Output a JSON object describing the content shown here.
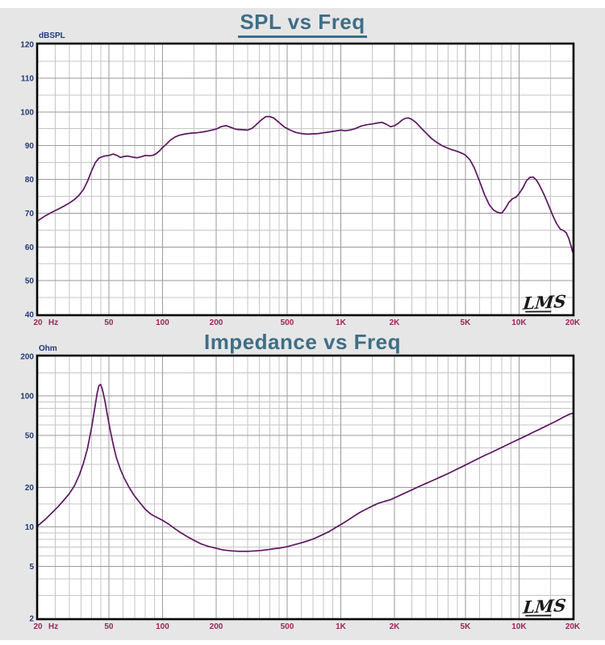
{
  "page": {
    "background": "#e6e6e6",
    "plot_background": "#ffffff",
    "colors": {
      "title": "#3e6e87",
      "curve": "#5b1560",
      "grid_major": "#9a9a9a",
      "grid_minor": "#c6c6c6",
      "border": "#000000",
      "y_label": "#1e3a78",
      "x_label": "#9c2457",
      "watermark": "#1a1a1a"
    }
  },
  "chart_data": "see charts array",
  "charts": [
    {
      "type": "line",
      "title": "SPL vs Freq",
      "y_unit": "dBSPL",
      "x_suffix_first_tick": "Hz",
      "watermark": "LMS",
      "x_scale": "log",
      "y_scale": "linear",
      "x_range": [
        20,
        20000
      ],
      "y_range": [
        40,
        120
      ],
      "y_ticks": [
        {
          "v": 120,
          "label": "120"
        },
        {
          "v": 110,
          "label": "110"
        },
        {
          "v": 100,
          "label": "100"
        },
        {
          "v": 90,
          "label": "90"
        },
        {
          "v": 80,
          "label": "80"
        },
        {
          "v": 70,
          "label": "70"
        },
        {
          "v": 60,
          "label": "60"
        },
        {
          "v": 50,
          "label": "50"
        },
        {
          "v": 40,
          "label": "40"
        }
      ],
      "y_minor": [
        115,
        105,
        95,
        85,
        75,
        65,
        55,
        45
      ],
      "x_ticks": [
        {
          "v": 20,
          "label": "20",
          "suffix": "Hz"
        },
        {
          "v": 50,
          "label": "50"
        },
        {
          "v": 100,
          "label": "100"
        },
        {
          "v": 200,
          "label": "200"
        },
        {
          "v": 500,
          "label": "500"
        },
        {
          "v": 1000,
          "label": "1K"
        },
        {
          "v": 2000,
          "label": "2K"
        },
        {
          "v": 5000,
          "label": "5K"
        },
        {
          "v": 10000,
          "label": "10K"
        },
        {
          "v": 20000,
          "label": "20K"
        }
      ],
      "x_minor": [
        25,
        30,
        35,
        40,
        45,
        60,
        70,
        80,
        90,
        150,
        250,
        300,
        350,
        400,
        450,
        600,
        700,
        800,
        900,
        1500,
        2500,
        3000,
        3500,
        4000,
        4500,
        6000,
        7000,
        8000,
        9000,
        15000
      ],
      "series": [
        [
          20,
          67.8
        ],
        [
          22,
          69.2
        ],
        [
          24,
          70.3
        ],
        [
          26,
          71.2
        ],
        [
          28,
          72.1
        ],
        [
          30,
          73
        ],
        [
          32,
          74
        ],
        [
          34,
          75.3
        ],
        [
          36,
          77
        ],
        [
          38,
          79.5
        ],
        [
          40,
          82.5
        ],
        [
          42,
          85
        ],
        [
          44,
          86.3
        ],
        [
          47,
          86.9
        ],
        [
          50,
          87.1
        ],
        [
          53,
          87.5
        ],
        [
          56,
          87
        ],
        [
          58,
          86.5
        ],
        [
          61,
          86.8
        ],
        [
          64,
          86.9
        ],
        [
          68,
          86.6
        ],
        [
          72,
          86.4
        ],
        [
          76,
          86.7
        ],
        [
          80,
          87.1
        ],
        [
          84,
          87
        ],
        [
          88,
          87.1
        ],
        [
          92,
          87.6
        ],
        [
          96,
          88.4
        ],
        [
          100,
          89.4
        ],
        [
          105,
          90.4
        ],
        [
          110,
          91.5
        ],
        [
          118,
          92.6
        ],
        [
          125,
          93.1
        ],
        [
          135,
          93.5
        ],
        [
          145,
          93.7
        ],
        [
          156,
          93.8
        ],
        [
          170,
          94.1
        ],
        [
          182,
          94.4
        ],
        [
          200,
          94.9
        ],
        [
          215,
          95.7
        ],
        [
          228,
          95.9
        ],
        [
          245,
          95.3
        ],
        [
          260,
          94.8
        ],
        [
          280,
          94.7
        ],
        [
          300,
          94.6
        ],
        [
          320,
          95.2
        ],
        [
          340,
          96.5
        ],
        [
          360,
          97.7
        ],
        [
          380,
          98.6
        ],
        [
          400,
          98.6
        ],
        [
          420,
          98.2
        ],
        [
          450,
          96.9
        ],
        [
          480,
          95.6
        ],
        [
          520,
          94.6
        ],
        [
          560,
          93.9
        ],
        [
          600,
          93.6
        ],
        [
          650,
          93.4
        ],
        [
          700,
          93.5
        ],
        [
          750,
          93.6
        ],
        [
          800,
          93.8
        ],
        [
          850,
          94
        ],
        [
          900,
          94.2
        ],
        [
          950,
          94.4
        ],
        [
          1000,
          94.6
        ],
        [
          1060,
          94.4
        ],
        [
          1120,
          94.6
        ],
        [
          1200,
          95
        ],
        [
          1300,
          95.8
        ],
        [
          1400,
          96.2
        ],
        [
          1500,
          96.4
        ],
        [
          1600,
          96.7
        ],
        [
          1700,
          96.9
        ],
        [
          1800,
          96.3
        ],
        [
          1900,
          95.6
        ],
        [
          2000,
          95.9
        ],
        [
          2100,
          96.6
        ],
        [
          2200,
          97.5
        ],
        [
          2300,
          98.1
        ],
        [
          2400,
          98.2
        ],
        [
          2500,
          97.8
        ],
        [
          2650,
          96.8
        ],
        [
          2800,
          95.4
        ],
        [
          3000,
          93.8
        ],
        [
          3200,
          92.3
        ],
        [
          3400,
          91.2
        ],
        [
          3700,
          90
        ],
        [
          4000,
          89.2
        ],
        [
          4200,
          88.8
        ],
        [
          4500,
          88.3
        ],
        [
          4800,
          87.7
        ],
        [
          5000,
          87.2
        ],
        [
          5300,
          85.8
        ],
        [
          5600,
          83.5
        ],
        [
          6000,
          79.5
        ],
        [
          6400,
          75.5
        ],
        [
          6800,
          72.5
        ],
        [
          7200,
          70.9
        ],
        [
          7600,
          70.2
        ],
        [
          8000,
          70
        ],
        [
          8400,
          71.5
        ],
        [
          8800,
          73.3
        ],
        [
          9200,
          74.3
        ],
        [
          9600,
          74.7
        ],
        [
          10000,
          75.8
        ],
        [
          10500,
          77.5
        ],
        [
          11000,
          79.6
        ],
        [
          11500,
          80.6
        ],
        [
          12000,
          80.7
        ],
        [
          12500,
          79.8
        ],
        [
          13000,
          78.3
        ],
        [
          13800,
          75.5
        ],
        [
          14600,
          72.5
        ],
        [
          15400,
          69.5
        ],
        [
          16200,
          67
        ],
        [
          17000,
          65.3
        ],
        [
          17800,
          64.8
        ],
        [
          18400,
          64.2
        ],
        [
          19000,
          62.5
        ],
        [
          19500,
          60.5
        ],
        [
          20000,
          58.4
        ]
      ]
    },
    {
      "type": "line",
      "title": "Impedance vs Freq",
      "y_unit": "Ohm",
      "x_suffix_first_tick": "Hz",
      "watermark": "LMS",
      "x_scale": "log",
      "y_scale": "log",
      "x_range": [
        20,
        20000
      ],
      "y_range": [
        2,
        200
      ],
      "y_ticks": [
        {
          "v": 200,
          "label": "200"
        },
        {
          "v": 100,
          "label": "100"
        },
        {
          "v": 50,
          "label": "50"
        },
        {
          "v": 20,
          "label": "20"
        },
        {
          "v": 10,
          "label": "10"
        },
        {
          "v": 5,
          "label": "5"
        },
        {
          "v": 2,
          "label": "2"
        }
      ],
      "y_minor": [
        150,
        90,
        80,
        70,
        60,
        40,
        30,
        15,
        9,
        8,
        7,
        6,
        4,
        3
      ],
      "x_ticks": [
        {
          "v": 20,
          "label": "20",
          "suffix": "Hz"
        },
        {
          "v": 50,
          "label": "50"
        },
        {
          "v": 100,
          "label": "100"
        },
        {
          "v": 200,
          "label": "200"
        },
        {
          "v": 500,
          "label": "500"
        },
        {
          "v": 1000,
          "label": "1K"
        },
        {
          "v": 2000,
          "label": "2K"
        },
        {
          "v": 5000,
          "label": "5K"
        },
        {
          "v": 10000,
          "label": "10K"
        },
        {
          "v": 20000,
          "label": "20K"
        }
      ],
      "x_minor": [
        25,
        30,
        35,
        40,
        45,
        60,
        70,
        80,
        90,
        150,
        250,
        300,
        350,
        400,
        450,
        600,
        700,
        800,
        900,
        1500,
        2500,
        3000,
        3500,
        4000,
        4500,
        6000,
        7000,
        8000,
        9000,
        15000
      ],
      "series": [
        [
          20,
          10.2
        ],
        [
          22,
          11.4
        ],
        [
          24,
          12.8
        ],
        [
          26,
          14.3
        ],
        [
          28,
          16
        ],
        [
          30,
          17.9
        ],
        [
          32,
          20.5
        ],
        [
          34,
          24.5
        ],
        [
          36,
          30.5
        ],
        [
          38,
          40
        ],
        [
          40,
          57
        ],
        [
          41.5,
          78
        ],
        [
          43,
          105
        ],
        [
          44,
          120
        ],
        [
          45,
          122
        ],
        [
          46,
          112
        ],
        [
          47.5,
          92
        ],
        [
          49,
          72
        ],
        [
          51,
          54
        ],
        [
          53,
          42
        ],
        [
          55,
          34
        ],
        [
          58,
          27.5
        ],
        [
          61,
          23.5
        ],
        [
          65,
          20
        ],
        [
          69,
          17.5
        ],
        [
          74,
          15.5
        ],
        [
          80,
          13.6
        ],
        [
          86,
          12.5
        ],
        [
          93,
          11.8
        ],
        [
          100,
          11.2
        ],
        [
          108,
          10.5
        ],
        [
          117,
          9.7
        ],
        [
          127,
          9
        ],
        [
          138,
          8.4
        ],
        [
          150,
          7.9
        ],
        [
          165,
          7.4
        ],
        [
          180,
          7.1
        ],
        [
          200,
          6.85
        ],
        [
          220,
          6.65
        ],
        [
          245,
          6.55
        ],
        [
          270,
          6.5
        ],
        [
          300,
          6.5
        ],
        [
          330,
          6.55
        ],
        [
          360,
          6.6
        ],
        [
          390,
          6.7
        ],
        [
          420,
          6.8
        ],
        [
          460,
          6.9
        ],
        [
          500,
          7.05
        ],
        [
          550,
          7.3
        ],
        [
          600,
          7.55
        ],
        [
          660,
          7.85
        ],
        [
          720,
          8.2
        ],
        [
          790,
          8.7
        ],
        [
          860,
          9.2
        ],
        [
          940,
          9.9
        ],
        [
          1000,
          10.4
        ],
        [
          1080,
          11.1
        ],
        [
          1170,
          11.9
        ],
        [
          1270,
          12.8
        ],
        [
          1380,
          13.6
        ],
        [
          1500,
          14.4
        ],
        [
          1620,
          15.1
        ],
        [
          1750,
          15.6
        ],
        [
          1900,
          16.1
        ],
        [
          2050,
          16.9
        ],
        [
          2250,
          17.9
        ],
        [
          2500,
          19.1
        ],
        [
          2750,
          20.3
        ],
        [
          3000,
          21.4
        ],
        [
          3300,
          22.7
        ],
        [
          3650,
          24.1
        ],
        [
          4000,
          25.5
        ],
        [
          4400,
          27.2
        ],
        [
          4850,
          29
        ],
        [
          5300,
          30.8
        ],
        [
          5800,
          32.8
        ],
        [
          6400,
          35
        ],
        [
          7000,
          37
        ],
        [
          7700,
          39.4
        ],
        [
          8500,
          42
        ],
        [
          9300,
          44.6
        ],
        [
          10000,
          46.7
        ],
        [
          11000,
          49.7
        ],
        [
          12000,
          52.7
        ],
        [
          13200,
          56
        ],
        [
          14500,
          59.6
        ],
        [
          16000,
          63.7
        ],
        [
          17500,
          68
        ],
        [
          19000,
          72
        ],
        [
          20000,
          73.5
        ]
      ]
    }
  ]
}
